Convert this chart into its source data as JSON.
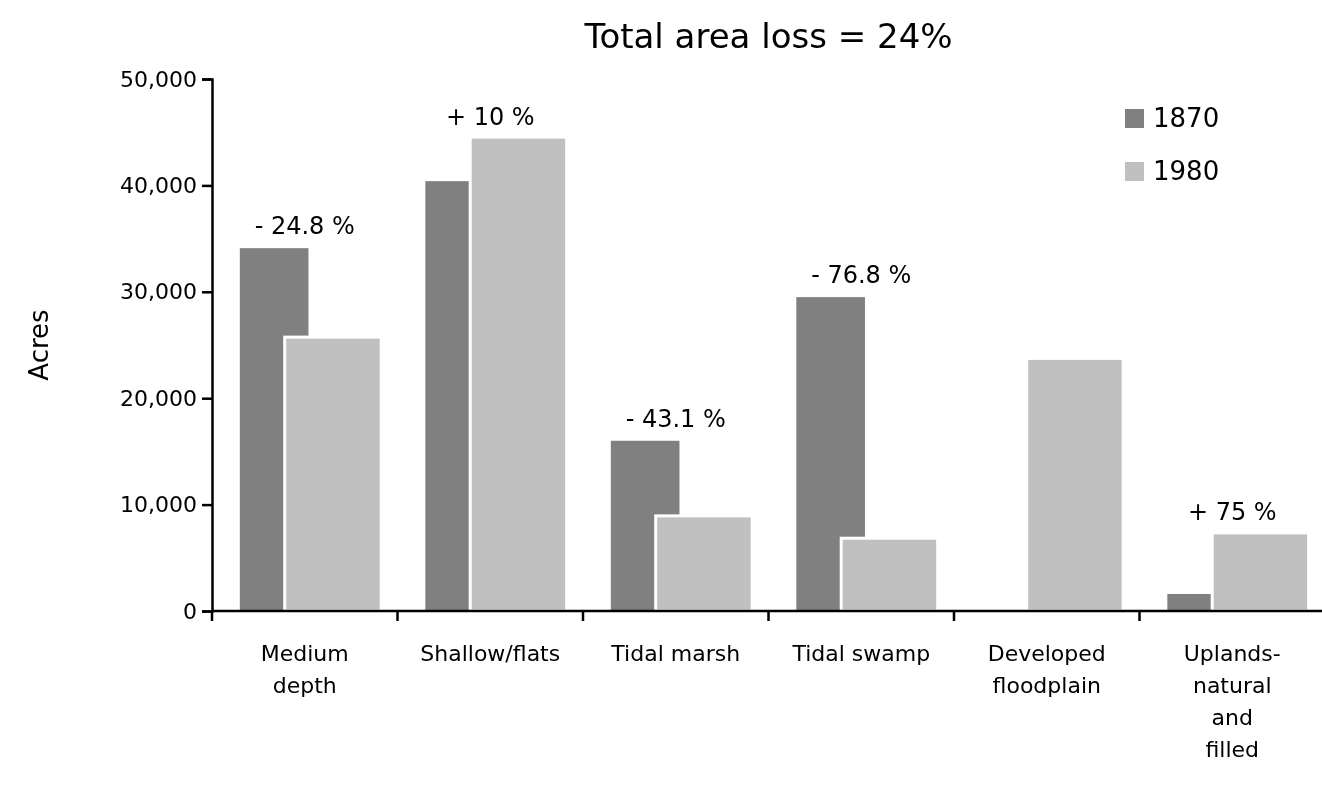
{
  "chart_data": {
    "type": "bar",
    "title": "Total area loss = 24%",
    "ylabel": "Acres",
    "categories": [
      "Medium\ndepth",
      "Shallow/flats",
      "Tidal marsh",
      "Tidal swamp",
      "Developed\nfloodplain",
      "Uplands-\nnatural\nand\nfilled"
    ],
    "series": [
      {
        "name": "1870",
        "color": "#808080",
        "values": [
          34100,
          40400,
          16000,
          29500,
          null,
          1600
        ]
      },
      {
        "name": "1980",
        "color": "#c0c0c0",
        "values": [
          25600,
          44400,
          8800,
          6700,
          23600,
          7200
        ]
      }
    ],
    "ylim": [
      0,
      50000
    ],
    "yticks": [
      {
        "value": 0,
        "label": "0"
      },
      {
        "value": 10000,
        "label": "10,000"
      },
      {
        "value": 20000,
        "label": "20,000"
      },
      {
        "value": 30000,
        "label": "30,000"
      },
      {
        "value": 40000,
        "label": "40,000"
      },
      {
        "value": 50000,
        "label": "50,000"
      }
    ],
    "annotations": [
      {
        "text": "- 24.8 %",
        "x": "Medium\ndepth",
        "y": 34100
      },
      {
        "text": "+ 10 %",
        "x": "Shallow/flats",
        "y": 44400
      },
      {
        "text": "- 43.1 %",
        "x": "Tidal marsh",
        "y": 16000
      },
      {
        "text": "- 76.8 %",
        "x": "Tidal swamp",
        "y": 29500
      },
      {
        "text": "+ 75 %",
        "x": "Uplands-\nnatural\nand\nfilled",
        "y": 7200
      }
    ],
    "legend": "top right",
    "grid": false
  }
}
